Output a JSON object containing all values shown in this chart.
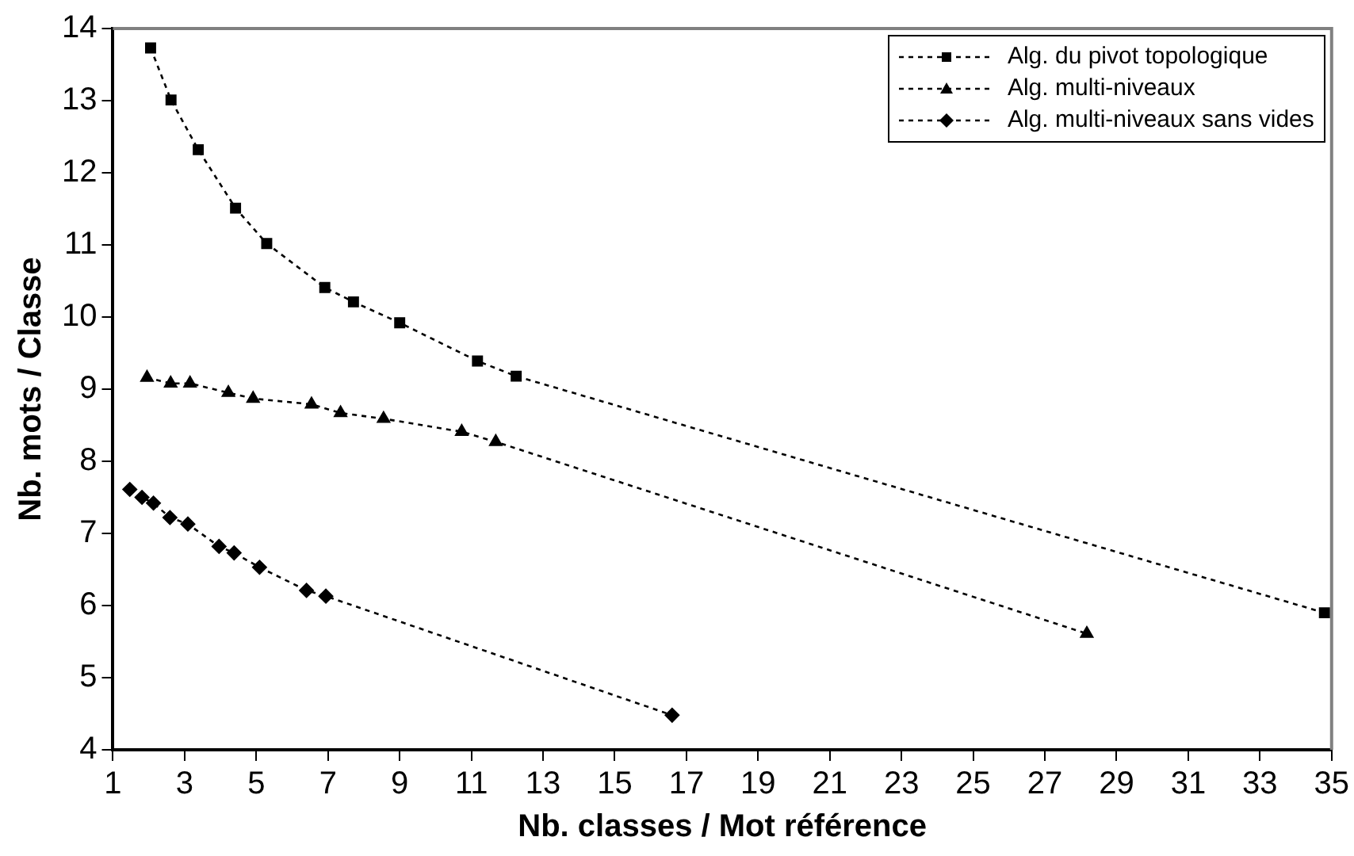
{
  "chart_data": {
    "type": "line",
    "xlabel": "Nb. classes / Mot référence",
    "ylabel": "Nb. mots / Classe",
    "xlim": [
      1,
      35
    ],
    "xticks": [
      1,
      3,
      5,
      7,
      9,
      11,
      13,
      15,
      17,
      19,
      21,
      23,
      25,
      27,
      29,
      31,
      33,
      35
    ],
    "ylim": [
      4,
      14
    ],
    "yticks": [
      4,
      5,
      6,
      7,
      8,
      9,
      10,
      11,
      12,
      13,
      14
    ],
    "grid": false,
    "legend": "top right",
    "line_style": "dotted",
    "series": [
      {
        "name": "Alg. du pivot topologique",
        "color": "#000000",
        "marker": "square",
        "x": [
          2.05,
          2.62,
          3.38,
          4.42,
          5.29,
          6.91,
          7.71,
          9.0,
          11.17,
          12.25,
          34.8
        ],
        "values": [
          13.73,
          13.01,
          12.32,
          11.51,
          11.02,
          10.41,
          10.21,
          9.92,
          9.39,
          9.18,
          5.9
        ]
      },
      {
        "name": "Alg. multi-niveaux",
        "color": "#000000",
        "marker": "triangle",
        "x": [
          1.95,
          2.61,
          3.15,
          4.22,
          4.91,
          6.54,
          7.35,
          8.55,
          10.73,
          11.68,
          28.17
        ],
        "values": [
          9.16,
          9.08,
          9.08,
          8.95,
          8.87,
          8.79,
          8.67,
          8.59,
          8.41,
          8.27,
          5.61
        ]
      },
      {
        "name": "Alg. multi-niveaux sans vides",
        "color": "#000000",
        "marker": "diamond",
        "x": [
          1.47,
          1.81,
          2.13,
          2.59,
          3.09,
          3.96,
          4.38,
          5.09,
          6.4,
          6.94,
          16.6
        ],
        "values": [
          7.61,
          7.5,
          7.42,
          7.22,
          7.13,
          6.82,
          6.73,
          6.53,
          6.21,
          6.13,
          4.48
        ]
      }
    ]
  }
}
